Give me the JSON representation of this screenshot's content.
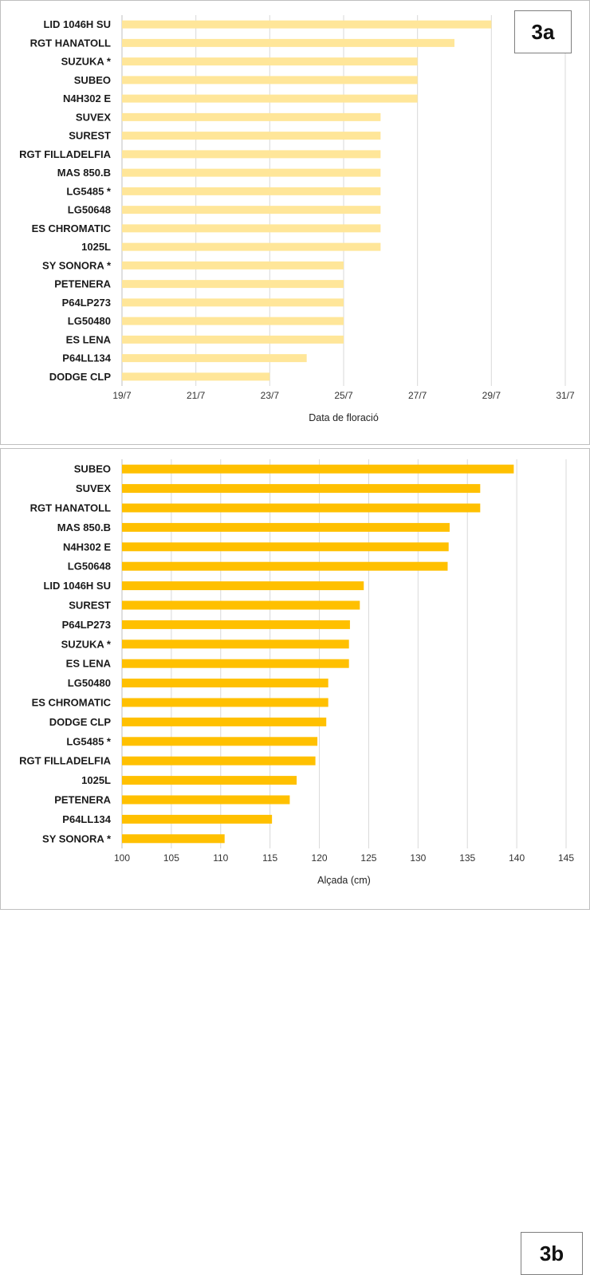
{
  "chart_data": [
    {
      "type": "bar",
      "orientation": "horizontal",
      "panel_label": "3a",
      "xlabel": "Data de floració",
      "x_ticks": [
        "19/7",
        "21/7",
        "23/7",
        "25/7",
        "27/7",
        "29/7",
        "31/7"
      ],
      "x_unit": "date",
      "xlim": [
        "19/7",
        "31/7"
      ],
      "grid": true,
      "bar_color": "#FFE699",
      "categories": [
        "LID 1046H SU",
        "RGT HANATOLL",
        "SUZUKA *",
        "SUBEO",
        "N4H302 E",
        "SUVEX",
        "SUREST",
        "RGT FILLADELFIA",
        "MAS 850.B",
        "LG5485 *",
        "LG50648",
        "ES CHROMATIC",
        "1025L",
        "SY SONORA *",
        "PETENERA",
        "P64LP273",
        "LG50480",
        "ES LENA",
        "P64LL134",
        "DODGE CLP"
      ],
      "values": [
        "29/7",
        "28/7",
        "27/7",
        "27/7",
        "27/7",
        "26/7",
        "26/7",
        "26/7",
        "26/7",
        "26/7",
        "26/7",
        "26/7",
        "26/7",
        "25/7",
        "25/7",
        "25/7",
        "25/7",
        "25/7",
        "24/7",
        "23/7"
      ]
    },
    {
      "type": "bar",
      "orientation": "horizontal",
      "panel_label": "3b",
      "xlabel": "Alçada (cm)",
      "x_ticks": [
        "100",
        "105",
        "110",
        "115",
        "120",
        "125",
        "130",
        "135",
        "140",
        "145"
      ],
      "xlim": [
        100,
        145
      ],
      "grid": true,
      "bar_color": "#FFC000",
      "categories": [
        "SUBEO",
        "SUVEX",
        "RGT HANATOLL",
        "MAS 850.B",
        "N4H302 E",
        "LG50648",
        "LID 1046H SU",
        "SUREST",
        "P64LP273",
        "SUZUKA *",
        "ES LENA",
        "LG50480",
        "ES CHROMATIC",
        "DODGE CLP",
        "LG5485 *",
        "RGT FILLADELFIA",
        "1025L",
        "PETENERA",
        "P64LL134",
        "SY SONORA *"
      ],
      "values": [
        139.7,
        136.3,
        136.3,
        133.2,
        133.1,
        133.0,
        124.5,
        124.1,
        123.1,
        123.0,
        123.0,
        120.9,
        120.9,
        120.7,
        119.8,
        119.6,
        117.7,
        117.0,
        115.2,
        110.4
      ]
    }
  ]
}
